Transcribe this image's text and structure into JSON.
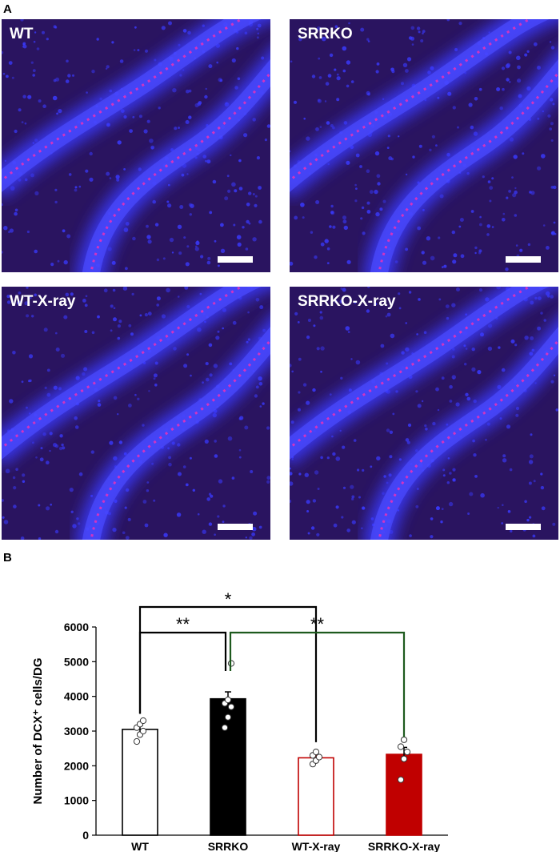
{
  "figure": {
    "panel_a_label": "A",
    "panel_b_label": "B"
  },
  "micrographs": [
    {
      "label": "WT"
    },
    {
      "label": "SRRKO"
    },
    {
      "label": "WT-X-ray"
    },
    {
      "label": "SRRKO-X-ray"
    }
  ],
  "colors": {
    "nuclei_stain": "#3a3aff",
    "dcx_stain": "#ff2fb0",
    "background_tissue": "#2a1460",
    "wt_bar_edge": "#000000",
    "srrko_bar": "#000000",
    "wt_xray_bar_edge": "#c00000",
    "srrko_xray_bar": "#c00000",
    "sig_bracket_black": "#000000",
    "sig_bracket_green": "#1e5a1e"
  },
  "chart_data": {
    "type": "bar",
    "categories": [
      "WT",
      "SRRKO",
      "WT-X-ray",
      "SRRKO-X-ray"
    ],
    "values": [
      3050,
      3930,
      2230,
      2330
    ],
    "errors": [
      120,
      200,
      80,
      200
    ],
    "points": [
      [
        2700,
        2900,
        3000,
        3100,
        3200,
        3300
      ],
      [
        3100,
        3400,
        3700,
        3800,
        3900,
        4950
      ],
      [
        2050,
        2150,
        2250,
        2300,
        2400
      ],
      [
        1600,
        2200,
        2400,
        2550,
        2750
      ]
    ],
    "bar_styles": [
      "open-black",
      "filled-black",
      "open-red",
      "filled-red"
    ],
    "ylabel": "Number of DCX⁺ cells/DG",
    "ylim": [
      0,
      6000
    ],
    "yticks": [
      "0",
      "1000",
      "2000",
      "3000",
      "4000",
      "5000",
      "6000"
    ],
    "significance": [
      {
        "from": "WT",
        "to": "WT-X-ray",
        "label": "*"
      },
      {
        "from": "WT",
        "to": "SRRKO",
        "label": "**"
      },
      {
        "from": "SRRKO",
        "to": "SRRKO-X-ray",
        "label": "**"
      }
    ]
  }
}
